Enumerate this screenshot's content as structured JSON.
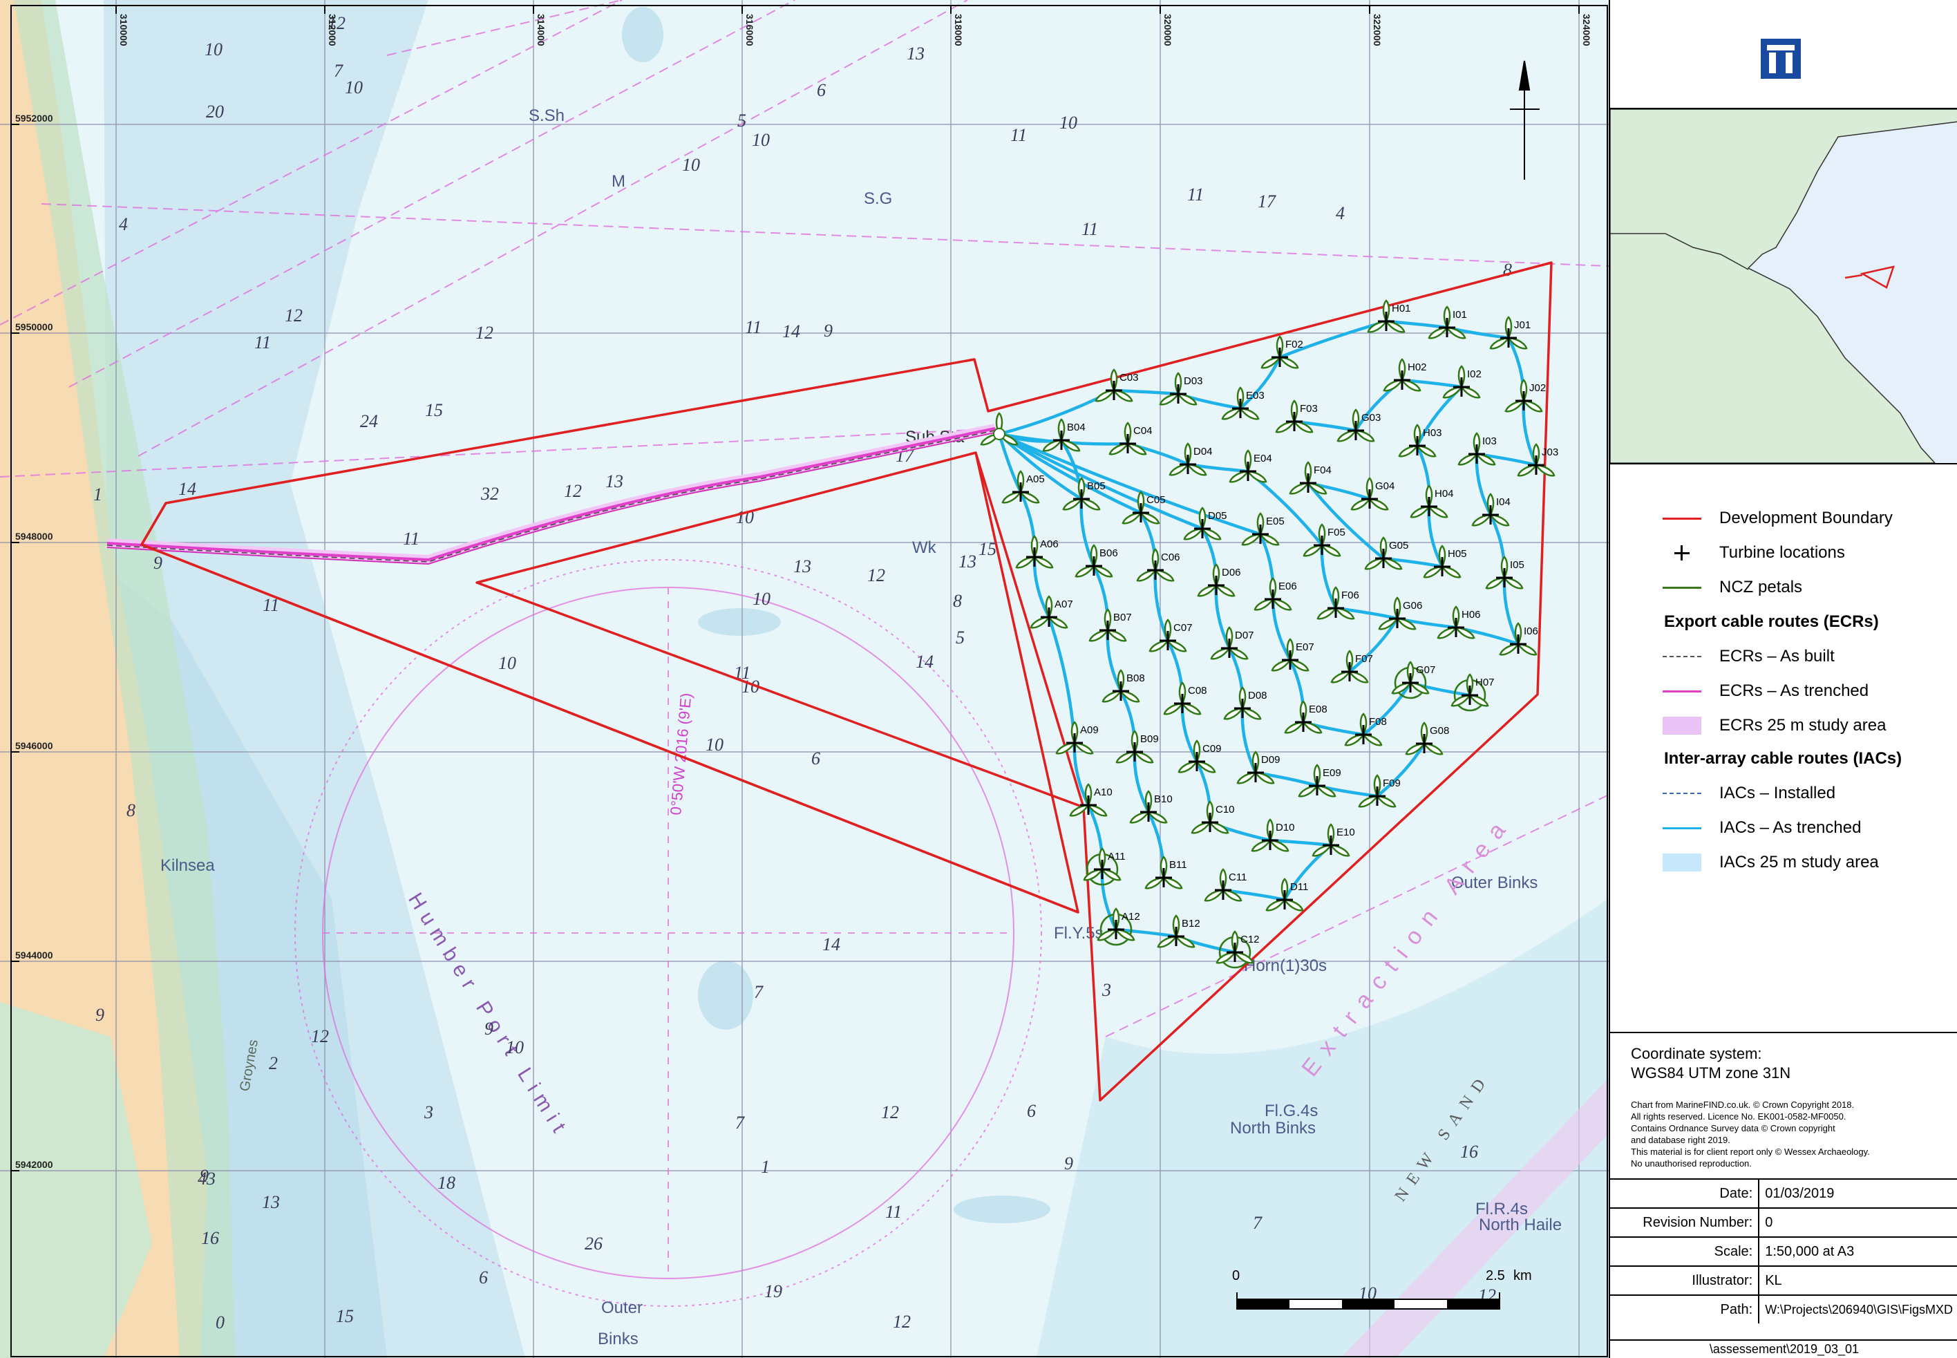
{
  "map": {
    "grid": {
      "eastings": [
        "310000",
        "312000",
        "314000",
        "316000",
        "318000",
        "320000",
        "322000",
        "324000"
      ],
      "northings": [
        "5952000",
        "5950000",
        "5948000",
        "5946000",
        "5944000",
        "5942000"
      ]
    },
    "place_labels": {
      "sub_station": "Sub Sta",
      "kilnsea": "Kilnsea",
      "outer_binks": "Outer Binks",
      "north_binks": "North Binks",
      "north_haile": "North Haile",
      "humber_port_limit": "Humber Port Limit",
      "extraction_area": "Extraction Area",
      "new_sand": "NEW SAND",
      "groynes": "Groynes",
      "outer": "Outer",
      "binks": "Binks",
      "horn_buoy": "Horn(1)30s",
      "fly5s": "Fl.Y.5s",
      "fl_g4s": "Fl.G.4s",
      "fl_r4s": "Fl.R.4s",
      "wk": "Wk",
      "var_text": "0°50'W 2016 (9'E)",
      "sh": "S.Sh",
      "s_g": "S.G",
      "m": "M"
    },
    "depth_soundings": [
      "6",
      "11",
      "10",
      "9",
      "13",
      "10",
      "10",
      "9",
      "11",
      "14",
      "10",
      "12",
      "11",
      "8",
      "10",
      "15",
      "11",
      "17",
      "12",
      "13",
      "16",
      "18",
      "14",
      "15",
      "12",
      "10",
      "9",
      "11",
      "7",
      "10",
      "12",
      "11",
      "9",
      "10",
      "16",
      "13",
      "12",
      "11",
      "3",
      "6",
      "1",
      "8",
      "0",
      "1",
      "5",
      "2",
      "4",
      "9",
      "3",
      "7",
      "10",
      "12",
      "4",
      "6",
      "10",
      "14",
      "15",
      "17",
      "12",
      "11",
      "10",
      "13",
      "9",
      "7",
      "26",
      "32",
      "43",
      "20",
      "24",
      "8",
      "10",
      "11",
      "12",
      "13",
      "19",
      "14",
      "7",
      "12",
      "6",
      "5"
    ],
    "turbines": [
      "A05",
      "A06",
      "A07",
      "A09",
      "A10",
      "A11",
      "A12",
      "B04",
      "B05",
      "B06",
      "B07",
      "B08",
      "B09",
      "B10",
      "B11",
      "B12",
      "C03",
      "C04",
      "C05",
      "C06",
      "C07",
      "C08",
      "C09",
      "C10",
      "C11",
      "C12",
      "D03",
      "D04",
      "D05",
      "D06",
      "D07",
      "D08",
      "D09",
      "D10",
      "D11",
      "E03",
      "E04",
      "E05",
      "E06",
      "E07",
      "E08",
      "E09",
      "E10",
      "F02",
      "F03",
      "F04",
      "F05",
      "F06",
      "F07",
      "F08",
      "F09",
      "G03",
      "G04",
      "G05",
      "G06",
      "G07",
      "G08",
      "H01",
      "H02",
      "H03",
      "H04",
      "H05",
      "H06",
      "H07",
      "I01",
      "I02",
      "I03",
      "I04",
      "I05",
      "I06",
      "J01",
      "J02",
      "J03"
    ],
    "scale_bar": {
      "start": "0",
      "end": "2.5",
      "unit": "km"
    },
    "colors": {
      "boundary": "#e02020",
      "ecr": "#e040c8",
      "iac": "#1eb2e8",
      "ncz": "#3a7a1a",
      "sea": "#dff1f6",
      "land": "#f7dbb2"
    }
  },
  "panel": {
    "logo": "logo-icon",
    "legend": {
      "development_boundary": "Development Boundary",
      "turbine_locations": "Turbine locations",
      "ncz_petals": "NCZ petals",
      "ecr_heading": "Export cable routes (ECRs)",
      "ecr_as_built": "ECRs – As built",
      "ecr_as_trenched": "ECRs – As trenched",
      "ecr_study_area": "ECRs 25 m study area",
      "iac_heading": "Inter-array cable routes (IACs)",
      "iac_installed": "IACs – Installed",
      "iac_as_trenched": "IACs – As trenched",
      "iac_study_area": "IACs 25 m study area"
    },
    "coord_label": "Coordinate system:",
    "coord_value": "WGS84 UTM zone 31N",
    "copyright": [
      "Chart from MarineFIND.co.uk. © Crown Copyright 2018.",
      "All rights reserved. Licence No. EK001-0582-MF0050.",
      "Contains Ordnance Survey data © Crown copyright",
      "and database right 2019.",
      "This material is for client report only © Wessex Archaeology.",
      "No unauthorised reproduction."
    ],
    "meta": {
      "date_label": "Date:",
      "date": "01/03/2019",
      "revision_label": "Revision Number:",
      "revision": "0",
      "scale_label": "Scale:",
      "scale": "1:50,000 at A3",
      "illustrator_label": "Illustrator:",
      "illustrator": "KL",
      "path_label": "Path:",
      "path": "W:\\Projects\\206940\\GIS\\FigsMXD",
      "path_cont": "\\assessement\\2019_03_01"
    }
  }
}
